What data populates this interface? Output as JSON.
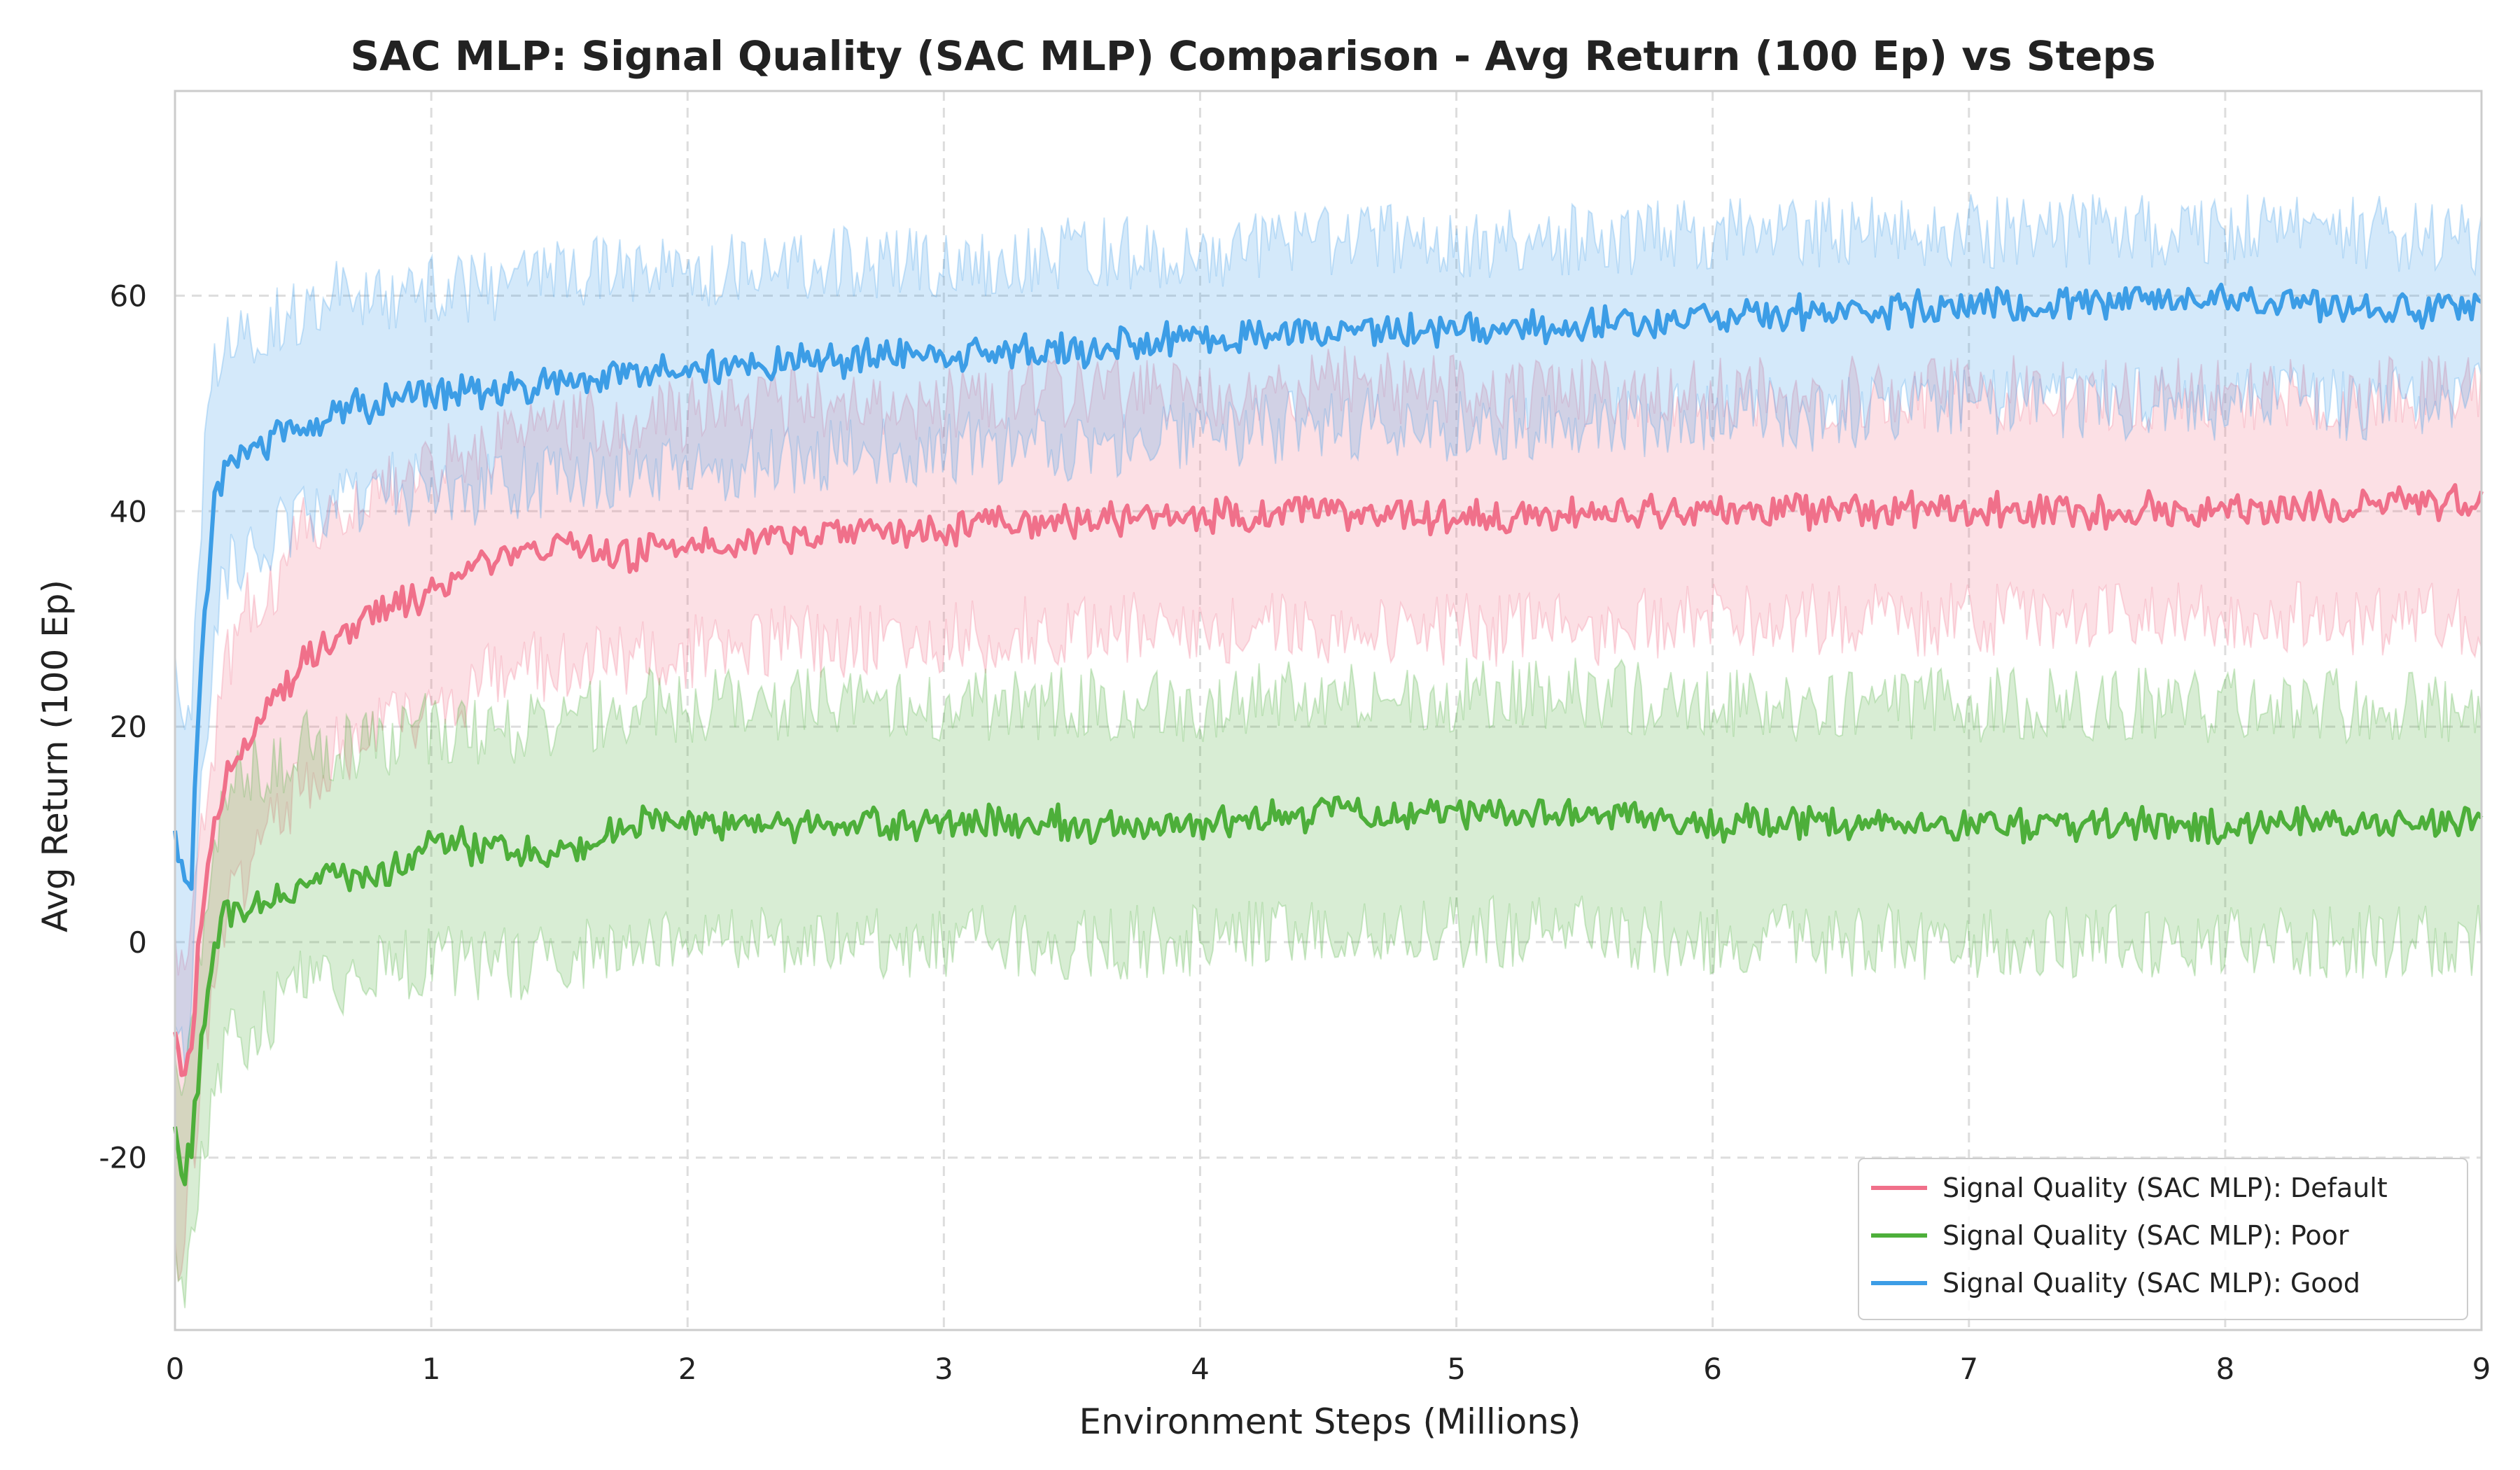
{
  "chart_data": {
    "type": "line",
    "title": "SAC MLP: Signal Quality (SAC MLP) Comparison - Avg Return (100 Ep) vs Steps",
    "xlabel": "Environment Steps (Millions)",
    "ylabel": "Avg Return (100 Ep)",
    "xlim": [
      0,
      9
    ],
    "ylim": [
      -36,
      79
    ],
    "xticks": [
      "0",
      "1",
      "2",
      "3",
      "4",
      "5",
      "6",
      "7",
      "8",
      "9"
    ],
    "yticks": [
      "-20",
      "0",
      "20",
      "40",
      "60"
    ],
    "grid": true,
    "legend_position": "bottom-right",
    "x": [
      0,
      0.03,
      0.06,
      0.1,
      0.15,
      0.2,
      0.3,
      0.4,
      0.5,
      0.6,
      0.8,
      1.0,
      1.2,
      1.5,
      1.75,
      2.0,
      2.5,
      3.0,
      3.5,
      4.0,
      4.5,
      5.0,
      5.5,
      6.0,
      6.5,
      7.0,
      7.5,
      8.0,
      8.5,
      9.0
    ],
    "series": [
      {
        "name": "Signal Quality (SAC MLP): Default",
        "color": "#f0708a",
        "values": [
          -9,
          -13,
          -11,
          2,
          10,
          16,
          20,
          23,
          26,
          28,
          31,
          32,
          35,
          37,
          36,
          37,
          38,
          38.5,
          39,
          39.5,
          40,
          39.5,
          40,
          40,
          40,
          40,
          40,
          40,
          40.5,
          41
        ],
        "lower": [
          -30,
          -28,
          -22,
          -12,
          -4,
          2,
          8,
          12,
          15,
          17,
          20,
          22,
          24,
          26,
          26,
          27,
          28,
          28,
          29,
          29,
          29,
          29,
          29,
          30,
          30,
          30,
          30,
          30,
          30,
          30
        ],
        "upper": [
          -2,
          -4,
          -2,
          10,
          18,
          26,
          32,
          34,
          38,
          40,
          42,
          44,
          46,
          48,
          48,
          49,
          50,
          50,
          51,
          51,
          52,
          51,
          51,
          51,
          51,
          51,
          51,
          51,
          51,
          51
        ]
      },
      {
        "name": "Signal Quality (SAC MLP): Poor",
        "color": "#4daf3a",
        "values": [
          -18,
          -22,
          -20,
          -10,
          0,
          3,
          3,
          4,
          6,
          6,
          6,
          9,
          9,
          8,
          11,
          11,
          11,
          11,
          11,
          11,
          12,
          12,
          12,
          11,
          11,
          11,
          11,
          11,
          11,
          11
        ],
        "lower": [
          -30,
          -33,
          -30,
          -22,
          -14,
          -10,
          -8,
          -6,
          -4,
          -4,
          -2,
          -2,
          -2,
          -2,
          0,
          0,
          0,
          0,
          0,
          0,
          1,
          1,
          1,
          0,
          0,
          0,
          0,
          0,
          0,
          0
        ],
        "upper": [
          -10,
          -12,
          -10,
          0,
          10,
          14,
          16,
          16,
          18,
          18,
          18,
          20,
          20,
          20,
          22,
          22,
          22,
          22,
          22,
          22,
          23,
          23,
          23,
          22,
          22,
          22,
          22,
          22,
          22,
          22
        ]
      },
      {
        "name": "Signal Quality (SAC MLP): Good",
        "color": "#3c9de6",
        "values": [
          10,
          6,
          4,
          26,
          40,
          45,
          46,
          47,
          48,
          49,
          50,
          51,
          51,
          52,
          53,
          53,
          54,
          54.5,
          55,
          56,
          56.5,
          57,
          57,
          58,
          58.5,
          59,
          59.5,
          59.5,
          59,
          58.5
        ],
        "lower": [
          -8,
          -10,
          -6,
          12,
          28,
          34,
          36,
          38,
          40,
          40,
          42,
          42,
          42,
          43,
          44,
          44,
          45,
          46,
          46,
          47,
          48,
          48,
          48,
          49,
          49,
          50,
          50,
          50,
          50,
          51
        ],
        "upper": [
          28,
          22,
          20,
          40,
          54,
          56,
          57,
          58,
          59,
          60,
          60,
          61,
          61,
          62,
          62,
          62,
          63,
          63,
          64,
          64,
          65,
          65,
          65,
          66,
          66,
          66,
          66,
          66,
          66,
          65
        ]
      }
    ]
  }
}
